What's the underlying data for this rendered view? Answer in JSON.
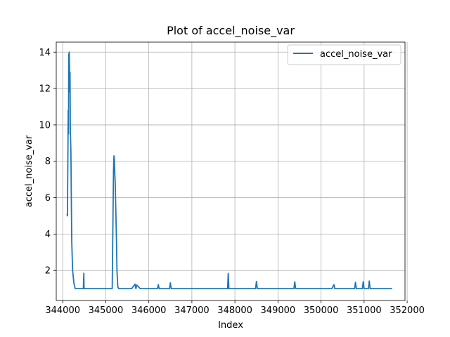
{
  "chart_data": {
    "type": "line",
    "title": "Plot of accel_noise_var",
    "xlabel": "Index",
    "ylabel": "accel_noise_var",
    "xlim": [
      343850,
      351950
    ],
    "ylim": [
      0.35,
      14.55
    ],
    "xticks": [
      344000,
      345000,
      346000,
      347000,
      348000,
      349000,
      350000,
      351000,
      352000
    ],
    "yticks": [
      2,
      4,
      6,
      8,
      10,
      12,
      14
    ],
    "grid": true,
    "legend_position": "upper-right",
    "series": [
      {
        "name": "accel_noise_var",
        "color": "#1f77b4",
        "x": [
          344100,
          344110,
          344115,
          344120,
          344128,
          344135,
          344140,
          344146,
          344152,
          344158,
          344164,
          344170,
          344176,
          344182,
          344190,
          344200,
          344210,
          344230,
          344260,
          344290,
          344320,
          344400,
          344480,
          344490,
          344495,
          344500,
          344510,
          344600,
          344800,
          345000,
          345150,
          345160,
          345170,
          345180,
          345190,
          345200,
          345210,
          345220,
          345230,
          345240,
          345250,
          345260,
          345280,
          345300,
          345320,
          345340,
          345400,
          345600,
          345680,
          345700,
          345720,
          345800,
          346000,
          346200,
          346220,
          346240,
          346400,
          346480,
          346500,
          346520,
          346700,
          347000,
          347300,
          347500,
          347800,
          347830,
          347845,
          347860,
          347900,
          348100,
          348300,
          348480,
          348500,
          348520,
          348700,
          349000,
          349100,
          349300,
          349370,
          349390,
          349410,
          349600,
          349800,
          350000,
          350100,
          350250,
          350300,
          350320,
          350500,
          350780,
          350800,
          350820,
          350900,
          350960,
          350980,
          351000,
          351100,
          351120,
          351140,
          351300,
          351380,
          351400,
          351420,
          351550,
          351650
        ],
        "y": [
          5.1,
          5.0,
          6.6,
          8.2,
          10.8,
          9.5,
          13.9,
          12.4,
          14.0,
          13.2,
          11.8,
          12.9,
          10.2,
          9.3,
          8.6,
          6.0,
          3.6,
          2.0,
          1.3,
          1.0,
          1.0,
          1.0,
          1.0,
          1.85,
          1.1,
          1.0,
          1.0,
          1.0,
          1.0,
          1.0,
          1.0,
          3.3,
          5.4,
          7.5,
          8.3,
          8.1,
          7.3,
          6.8,
          5.7,
          4.6,
          3.5,
          2.0,
          1.1,
          1.0,
          1.0,
          1.0,
          1.0,
          1.0,
          1.25,
          1.0,
          1.2,
          1.0,
          1.0,
          1.0,
          1.22,
          1.0,
          1.0,
          1.0,
          1.32,
          1.0,
          1.0,
          1.0,
          1.0,
          1.0,
          1.0,
          1.0,
          1.84,
          1.0,
          1.0,
          1.0,
          1.0,
          1.0,
          1.4,
          1.0,
          1.0,
          1.0,
          1.0,
          1.0,
          1.0,
          1.38,
          1.0,
          1.0,
          1.0,
          1.0,
          1.0,
          1.0,
          1.22,
          1.0,
          1.0,
          1.0,
          1.35,
          1.0,
          1.0,
          1.0,
          1.38,
          1.0,
          1.0,
          1.42,
          1.0,
          1.0,
          1.0,
          1.0,
          1.0,
          1.0,
          1.0
        ]
      }
    ]
  }
}
